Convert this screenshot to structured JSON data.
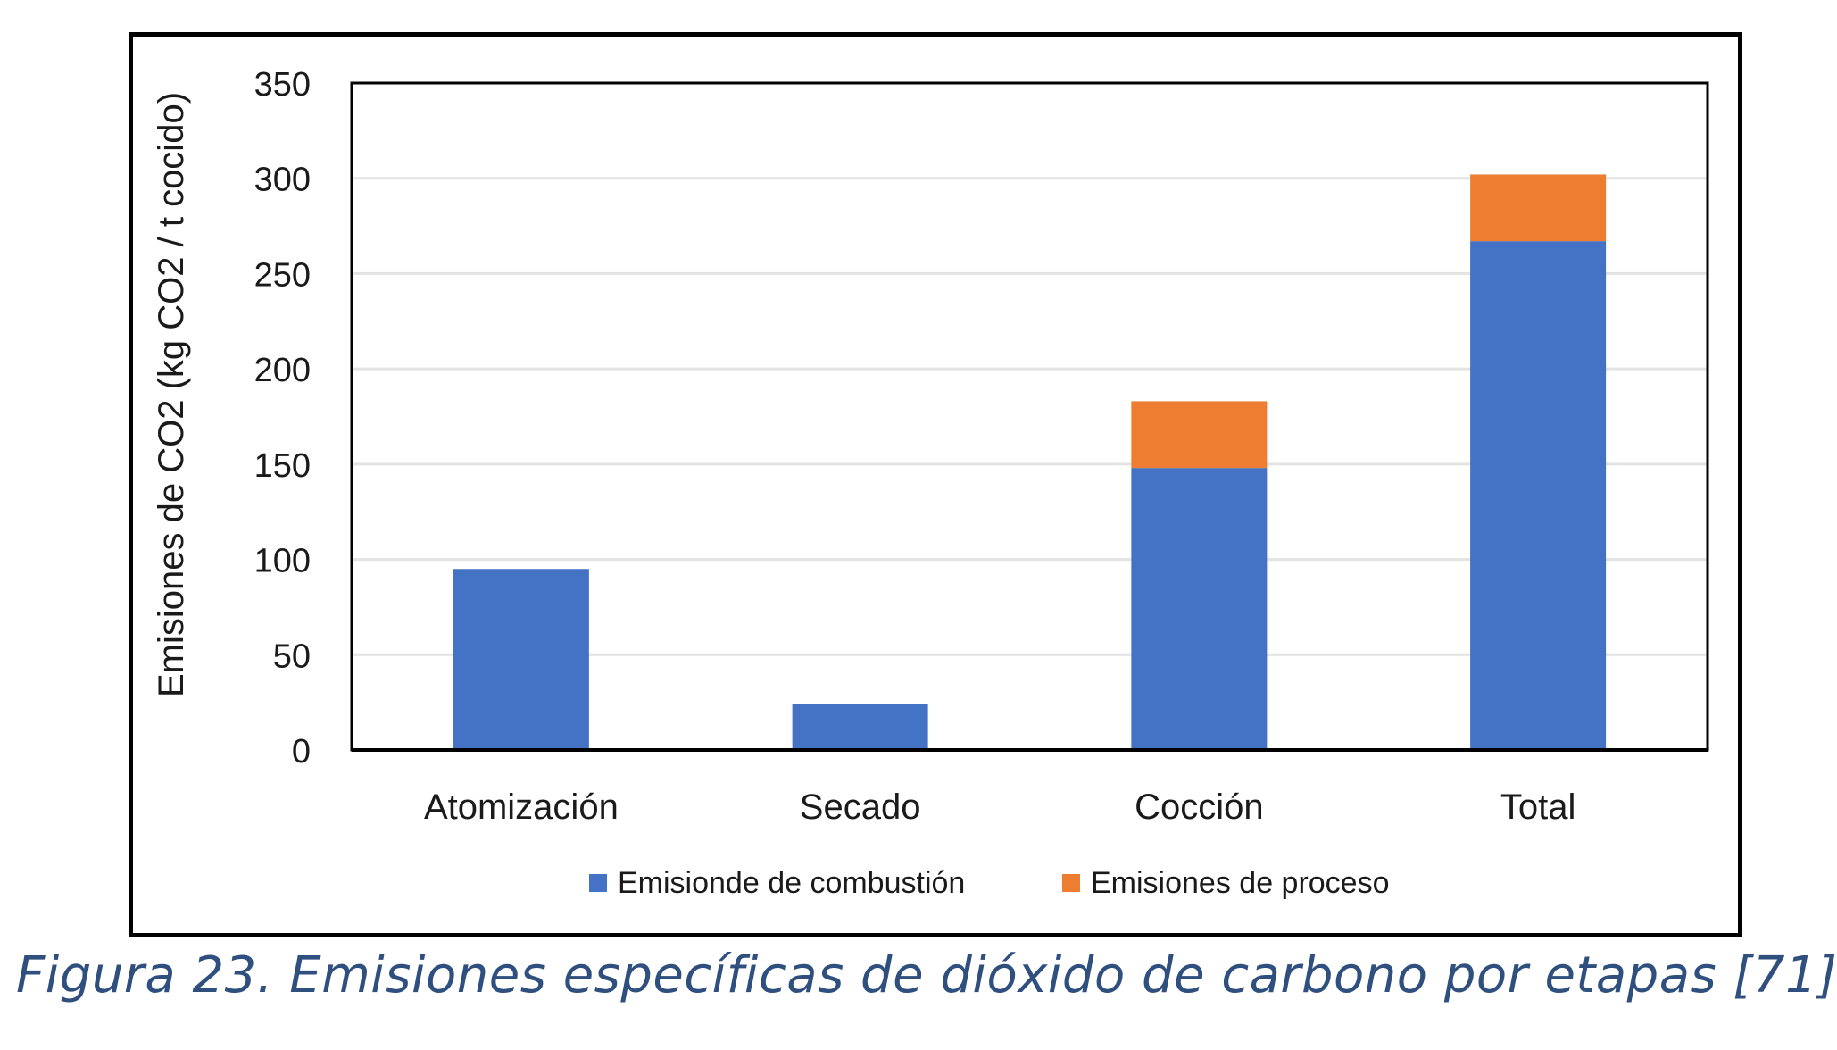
{
  "chart_data": {
    "type": "bar",
    "stacked": true,
    "categories": [
      "Atomización",
      "Secado",
      "Cocción",
      "Total"
    ],
    "series": [
      {
        "name": "Emisionde de combustión",
        "color": "#4472c4",
        "values": [
          95,
          24,
          148,
          267
        ]
      },
      {
        "name": "Emisiones de proceso",
        "color": "#ed7d31",
        "values": [
          0,
          0,
          35,
          35
        ]
      }
    ],
    "title": "",
    "xlabel": "",
    "ylabel": "Emisiones de CO2 (kg CO2 / t cocido)",
    "ylim": [
      0,
      350
    ],
    "yticks": [
      0,
      50,
      100,
      150,
      200,
      250,
      300,
      350
    ],
    "grid": true,
    "legend_position": "bottom"
  },
  "caption": "Figura 23. Emisiones específicas de dióxido de carbono por etapas [71]"
}
